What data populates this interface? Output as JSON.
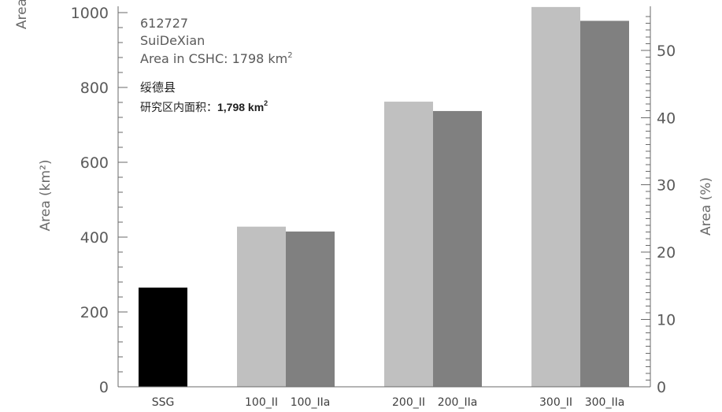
{
  "chart_data": {
    "type": "bar",
    "categories": [
      "SSG",
      "100_II",
      "100_IIa",
      "200_II",
      "200_IIa",
      "300_II",
      "300_IIa"
    ],
    "values": [
      265,
      428,
      415,
      762,
      737,
      1015,
      978
    ],
    "colors": [
      "#000000",
      "#c0c0c0",
      "#808080",
      "#c0c0c0",
      "#808080",
      "#c0c0c0",
      "#808080"
    ],
    "ylabel": "Area (km²)",
    "ylabel_right": "Area (%)",
    "clipped_top_label": "Area",
    "ylim": [
      0,
      1000
    ],
    "y2lim": [
      0,
      55.6
    ],
    "yticks": [
      "0",
      "200",
      "400",
      "600",
      "800",
      "1000"
    ],
    "y2ticks": [
      "0",
      "10",
      "20",
      "30",
      "40",
      "50"
    ],
    "annotations": {
      "code": "612727",
      "name": "SuiDeXian",
      "area_en_prefix": "Area in CSHC: 1798 km",
      "area_en_sup": "2",
      "name_cn": "绥德县",
      "area_cn_prefix": "研究区内面积：",
      "area_cn_value": "1,798 km",
      "area_cn_sup": "2"
    }
  }
}
